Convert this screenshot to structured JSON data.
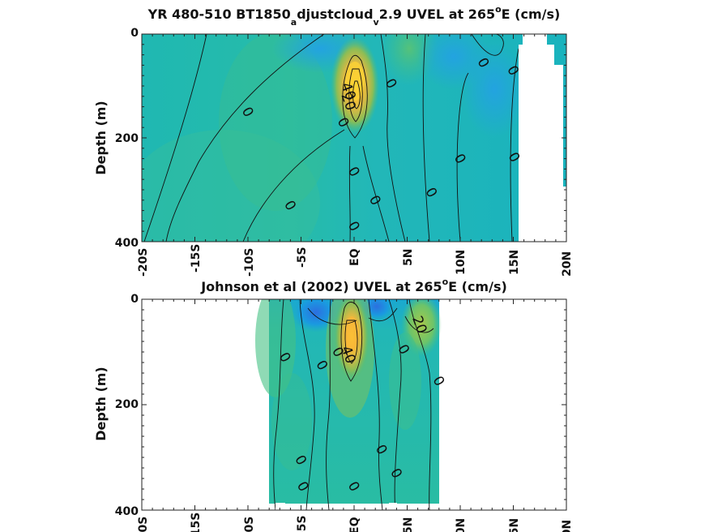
{
  "chart_data": [
    {
      "type": "heatmap",
      "title_parts": {
        "main": "YR 480-510 BT1850",
        "sub1": "a",
        "mid": "djustcloud",
        "sub2": "v",
        "tail": "2.9 UVEL at 265",
        "sup": "o",
        "end": "E (cm/s)"
      },
      "ylabel": "Depth (m)",
      "xlim": [
        -20,
        20
      ],
      "ylim": [
        0,
        400
      ],
      "y_reversed": true,
      "x_tick_values": [
        -20,
        -15,
        -10,
        -5,
        0,
        5,
        10,
        15,
        20
      ],
      "x_tick_labels": [
        "-20S",
        "-15S",
        "-10S",
        "-5S",
        "EQ",
        "5N",
        "10N",
        "15N",
        "20N"
      ],
      "y_tick_values": [
        0,
        200,
        400
      ],
      "y_tick_labels": [
        "0",
        "200",
        "400"
      ],
      "data_extent_x": [
        -20,
        15.3
      ],
      "nan_patches": [
        {
          "x": [
            15.3,
            17.2
          ],
          "y": [
            0,
            400
          ]
        },
        {
          "x": [
            17.2,
            18.8
          ],
          "y": [
            0,
            400
          ]
        },
        {
          "x": [
            18.8,
            20
          ],
          "y": [
            70,
            400
          ]
        }
      ],
      "features": [
        {
          "kind": "jet",
          "x": 0.2,
          "y": 100,
          "max": 80
        },
        {
          "kind": "westward",
          "x": -2,
          "y": 40,
          "min": -20
        },
        {
          "kind": "westward",
          "x": 13,
          "y": 60,
          "min": -20
        }
      ],
      "contour_labels": [
        {
          "text": "0",
          "x": -10,
          "y": 150
        },
        {
          "text": "0",
          "x": -6,
          "y": 330
        },
        {
          "text": "0",
          "x": 3.5,
          "y": 95
        },
        {
          "text": "0",
          "x": 12.2,
          "y": 55
        },
        {
          "text": "0",
          "x": 15,
          "y": 70
        },
        {
          "text": "0",
          "x": 10,
          "y": 240
        },
        {
          "text": "0",
          "x": 15.1,
          "y": 237
        },
        {
          "text": "0",
          "x": -1,
          "y": 170
        },
        {
          "text": "0",
          "x": 0,
          "y": 265
        },
        {
          "text": "0",
          "x": 2,
          "y": 320
        },
        {
          "text": "0",
          "x": 7.3,
          "y": 305
        },
        {
          "text": "0",
          "x": 0,
          "y": 370
        },
        {
          "text": "40",
          "x": -0.5,
          "y": 110
        },
        {
          "text": "20",
          "x": -0.5,
          "y": 130
        }
      ],
      "colormap": "parula"
    },
    {
      "type": "heatmap",
      "title_parts": {
        "main": "Johnson et al (2002) UVEL at 265",
        "sup": "o",
        "end": "E (cm/s)"
      },
      "ylabel": "Depth (m)",
      "xlim": [
        -20,
        20
      ],
      "ylim": [
        0,
        400
      ],
      "y_reversed": true,
      "x_tick_values": [
        -20,
        -15,
        -10,
        -5,
        0,
        5,
        10,
        15,
        20
      ],
      "x_tick_labels": [
        "-20S",
        "-15S",
        "-10S",
        "-5S",
        "EQ",
        "5N",
        "10N",
        "15N",
        "20N"
      ],
      "y_tick_values": [
        0,
        200,
        400
      ],
      "y_tick_labels": [
        "0",
        "200",
        "400"
      ],
      "data_extent_x": [
        -8,
        8.2
      ],
      "features": [
        {
          "kind": "jet",
          "x": 0,
          "y": 70,
          "max": 80
        },
        {
          "kind": "westward",
          "x": -4.5,
          "y": 20,
          "min": -20
        },
        {
          "kind": "westward",
          "x": 2.3,
          "y": 10,
          "min": -20
        },
        {
          "kind": "eastward",
          "x": 6.5,
          "y": 40,
          "max": 20
        }
      ],
      "contour_labels": [
        {
          "text": "0",
          "x": -6.5,
          "y": 110
        },
        {
          "text": "0",
          "x": -3,
          "y": 125
        },
        {
          "text": "0",
          "x": -1.5,
          "y": 100
        },
        {
          "text": "0",
          "x": 4.7,
          "y": 95
        },
        {
          "text": "0",
          "x": 8,
          "y": 155
        },
        {
          "text": "0",
          "x": 2.6,
          "y": 285
        },
        {
          "text": "0",
          "x": 4,
          "y": 330
        },
        {
          "text": "0",
          "x": -5,
          "y": 305
        },
        {
          "text": "0",
          "x": -4.8,
          "y": 355
        },
        {
          "text": "0",
          "x": 0,
          "y": 355
        },
        {
          "text": "40",
          "x": -0.5,
          "y": 105
        },
        {
          "text": "20",
          "x": 6.2,
          "y": 48
        }
      ],
      "colormap": "parula"
    }
  ]
}
